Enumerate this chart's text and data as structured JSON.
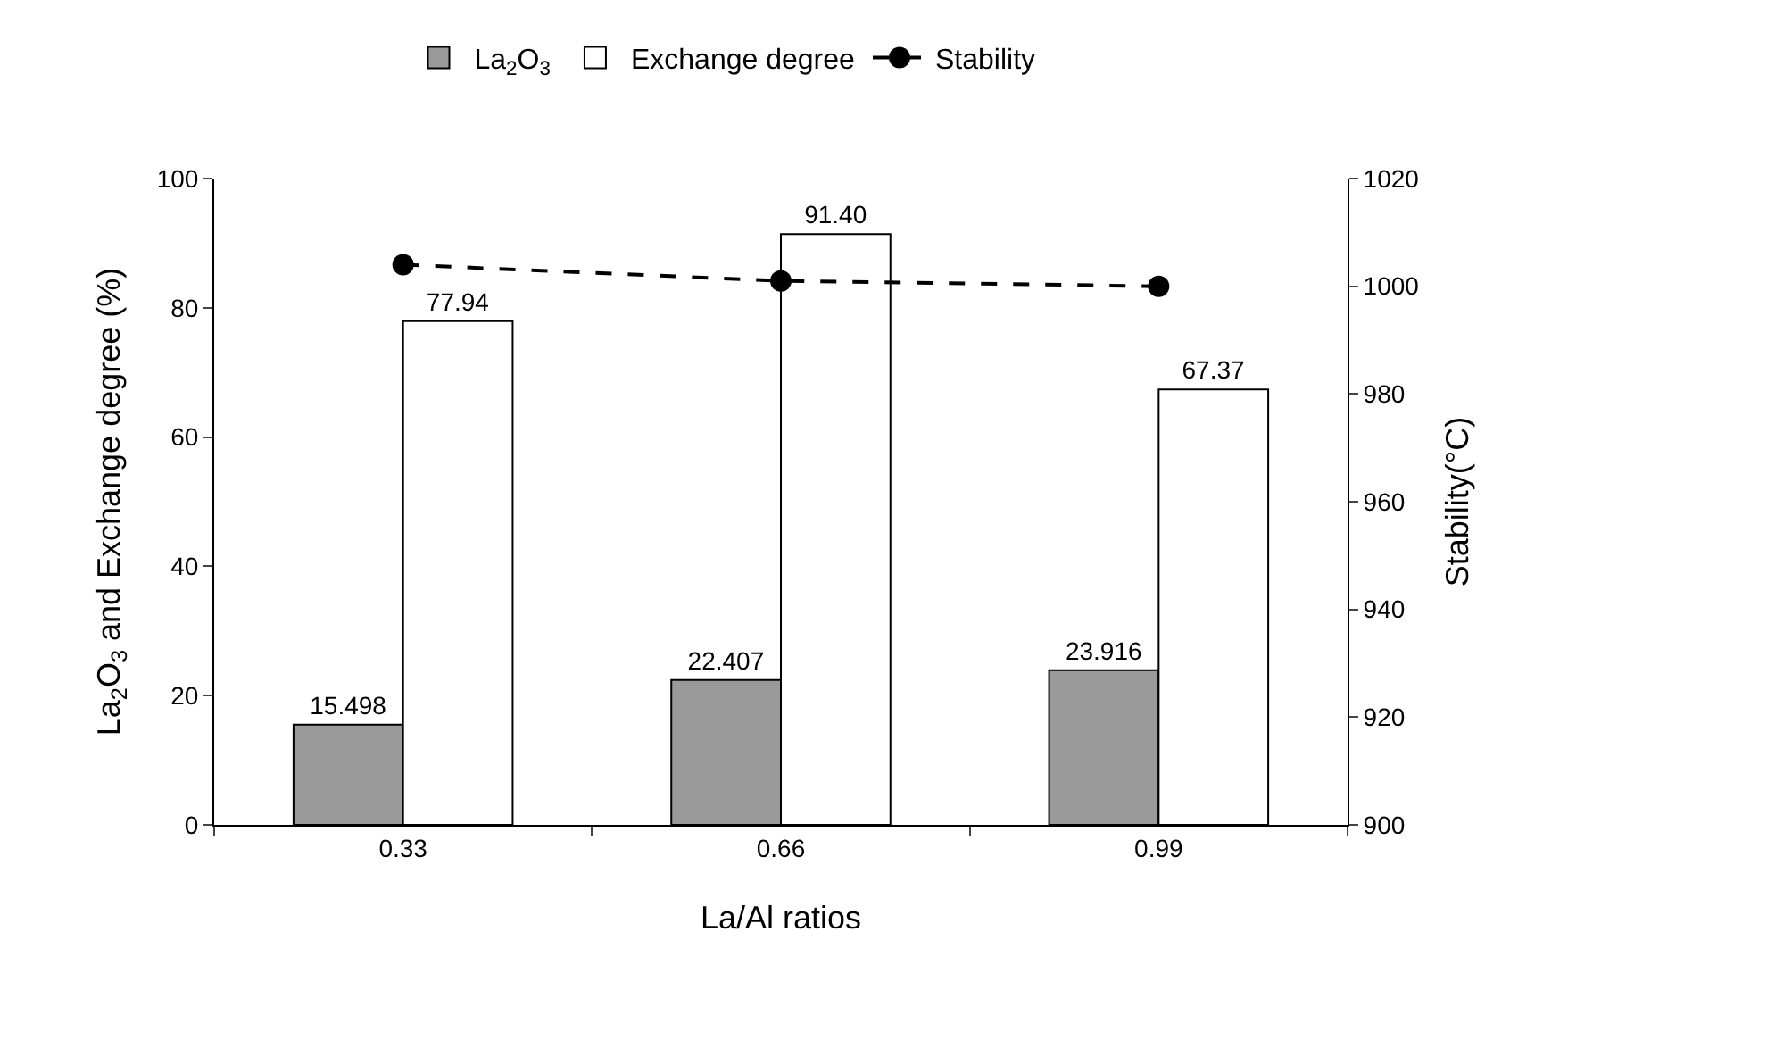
{
  "chart_data": {
    "type": "bar",
    "xlabel": "La/Al ratios",
    "ylabel": "La$_{2}$O$_{3}$ and Exchange degree (%)",
    "y2label": "Stability(°C)",
    "categories": [
      "0.33",
      "0.66",
      "0.99"
    ],
    "series": [
      {
        "name": "La$_{2}$O$_{3}$",
        "color": "#9a9a9a",
        "values": [
          15.498,
          22.407,
          23.916
        ],
        "value_labels": [
          "15.498",
          "22.407",
          "23.916"
        ]
      },
      {
        "name": "Exchange degree",
        "color": "#ffffff",
        "values": [
          77.94,
          91.4,
          67.37
        ],
        "value_labels": [
          "77.94",
          "91.40",
          "67.37"
        ]
      },
      {
        "name": "Stability",
        "type": "line",
        "axis": "y2",
        "color": "#000000",
        "values": [
          1004,
          1001,
          1000
        ],
        "marker": "circle",
        "line_style": "dashed"
      }
    ],
    "ylim": [
      0,
      100
    ],
    "yticks": [
      0,
      20,
      40,
      60,
      80,
      100
    ],
    "y2lim": [
      900,
      1020
    ],
    "y2ticks": [
      900,
      920,
      940,
      960,
      980,
      1000,
      1020
    ],
    "legend": "top"
  }
}
